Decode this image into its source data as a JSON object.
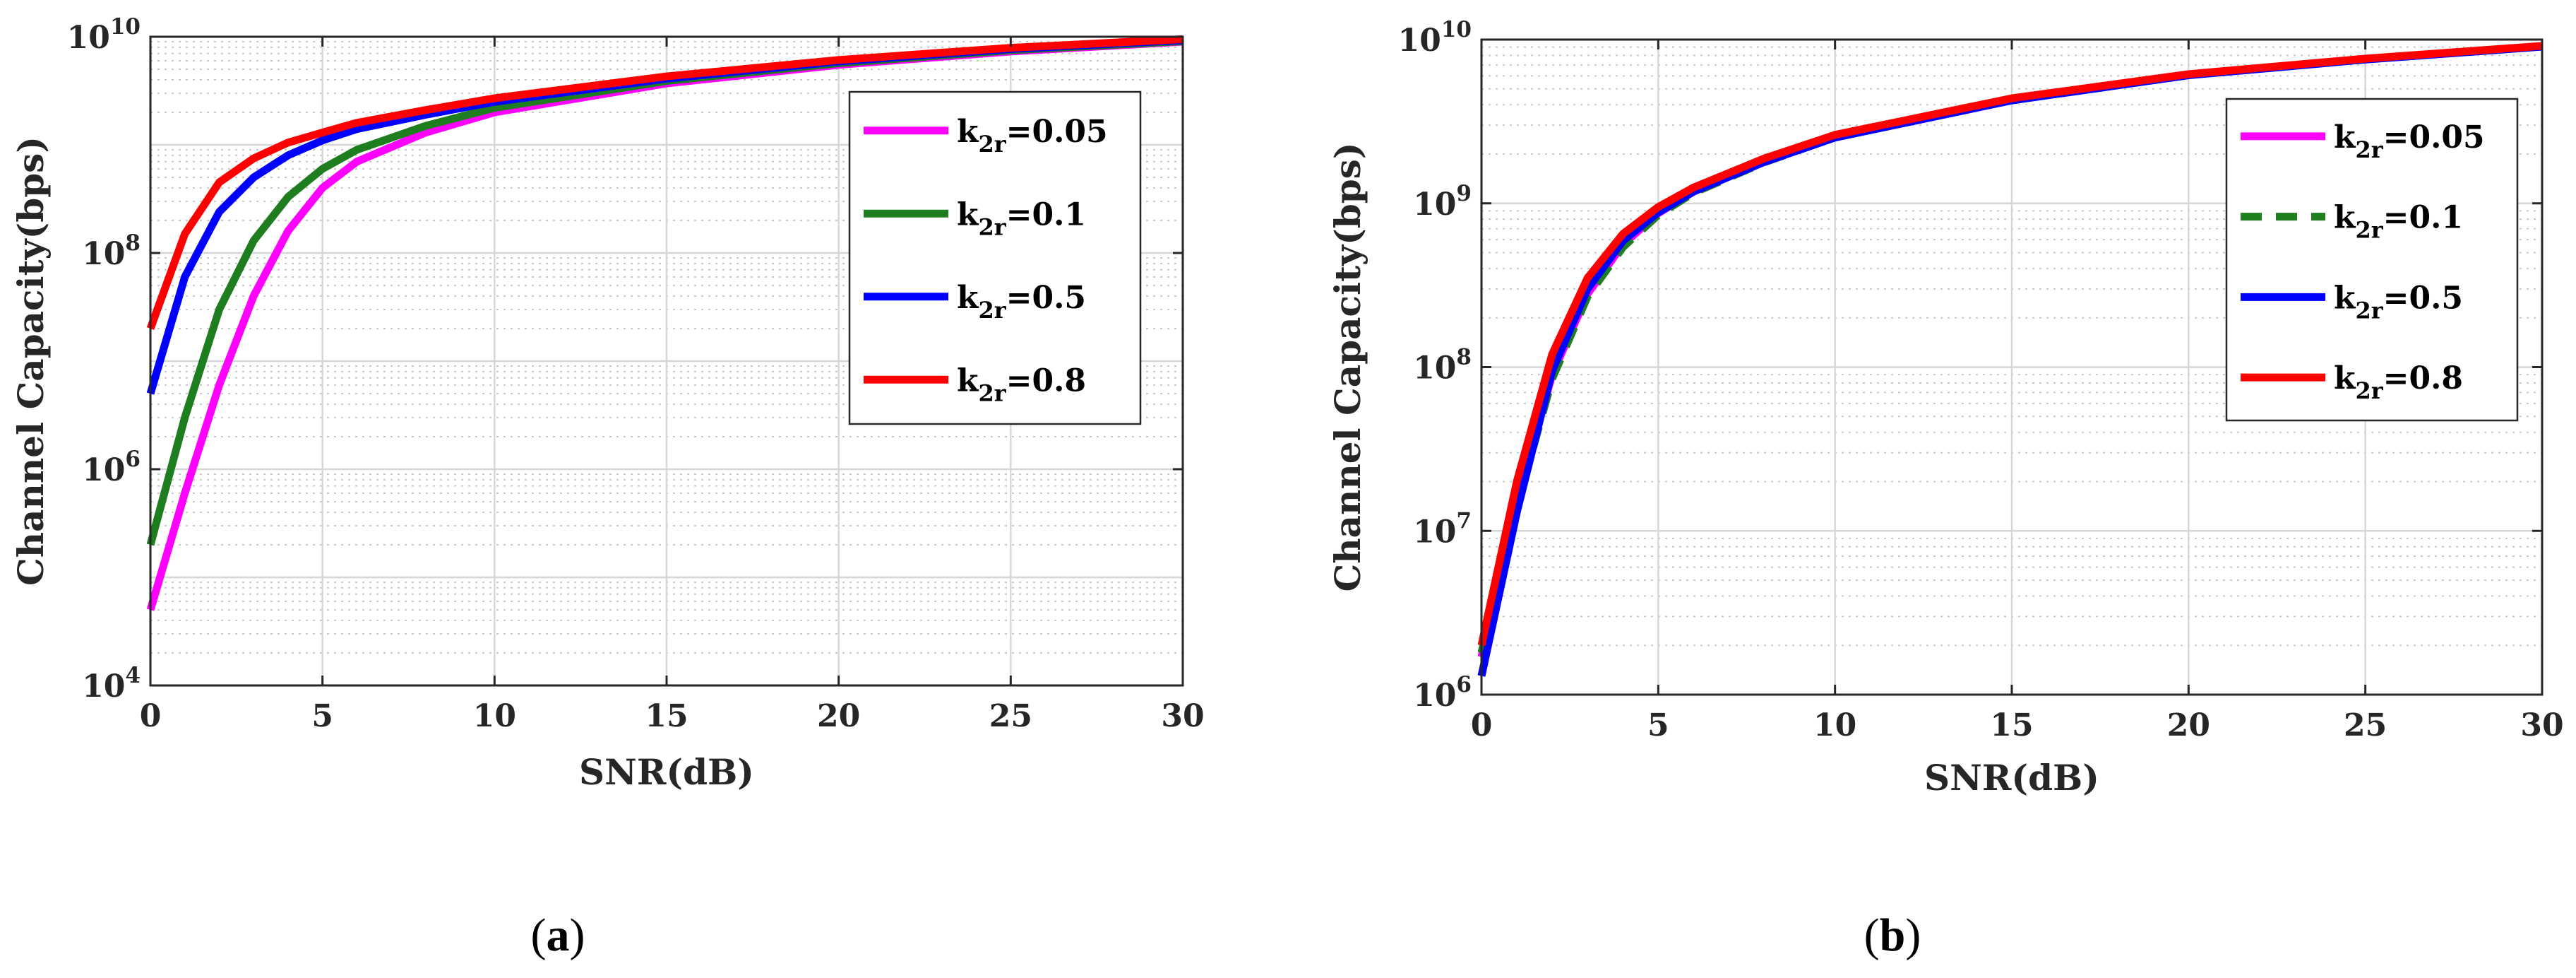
{
  "chart_data": [
    {
      "type": "line",
      "panel_label": "a",
      "title": "",
      "xlabel": "SNR(dB)",
      "ylabel": "Channel Capacity(bps)",
      "xlim": [
        0,
        30
      ],
      "ylim": [
        10000,
        10000000000
      ],
      "yscale": "log",
      "grid": true,
      "minor_grid": true,
      "legend_position": "top-right",
      "xticks": [
        "0",
        "5",
        "10",
        "15",
        "20",
        "25",
        "30"
      ],
      "yticks": [
        {
          "base": "10",
          "exp": "4"
        },
        {
          "base": "10",
          "exp": "6"
        },
        {
          "base": "10",
          "exp": "8"
        },
        {
          "base": "10",
          "exp": "10"
        }
      ],
      "x": [
        0,
        1,
        2,
        3,
        4,
        5,
        6,
        8,
        10,
        15,
        20,
        25,
        30
      ],
      "series": [
        {
          "name": "k_2r=0.05",
          "legend_main": "k",
          "legend_sub": "2r",
          "legend_value": "=0.05",
          "color": "#ff00ff",
          "dash": "solid",
          "values": [
            50000,
            600000,
            6000000,
            40000000,
            160000000,
            400000000,
            700000000,
            1300000000,
            2000000000,
            3700000000,
            5500000000,
            7300000000,
            9000000000
          ]
        },
        {
          "name": "k_2r=0.1",
          "legend_main": "k",
          "legend_sub": "2r",
          "legend_value": "=0.1",
          "color": "#1e7d1e",
          "dash": "solid",
          "values": [
            200000,
            3000000,
            30000000,
            130000000,
            330000000,
            600000000,
            900000000,
            1500000000,
            2200000000,
            3900000000,
            5700000000,
            7500000000,
            9100000000
          ]
        },
        {
          "name": "k_2r=0.5",
          "legend_main": "k",
          "legend_sub": "2r",
          "legend_value": "=0.5",
          "color": "#0000ff",
          "dash": "solid",
          "values": [
            5000000,
            60000000,
            240000000,
            500000000,
            800000000,
            1100000000,
            1400000000,
            1900000000,
            2500000000,
            4100000000,
            5900000000,
            7700000000,
            9300000000
          ]
        },
        {
          "name": "k_2r=0.8",
          "legend_main": "k",
          "legend_sub": "2r",
          "legend_value": "=0.8",
          "color": "#ff0000",
          "dash": "solid",
          "values": [
            20000000,
            150000000,
            450000000,
            750000000,
            1050000000,
            1300000000,
            1600000000,
            2100000000,
            2700000000,
            4300000000,
            6100000000,
            7900000000,
            9500000000
          ]
        }
      ]
    },
    {
      "type": "line",
      "panel_label": "b",
      "title": "",
      "xlabel": "SNR(dB)",
      "ylabel": "Channel Capacity(bps)",
      "xlim": [
        0,
        30
      ],
      "ylim": [
        1000000,
        10000000000
      ],
      "yscale": "log",
      "grid": true,
      "minor_grid": true,
      "legend_position": "top-right",
      "xticks": [
        "0",
        "5",
        "10",
        "15",
        "20",
        "25",
        "30"
      ],
      "yticks": [
        {
          "base": "10",
          "exp": "6"
        },
        {
          "base": "10",
          "exp": "7"
        },
        {
          "base": "10",
          "exp": "8"
        },
        {
          "base": "10",
          "exp": "9"
        },
        {
          "base": "10",
          "exp": "10"
        }
      ],
      "x": [
        0,
        1,
        2,
        3,
        4,
        5,
        6,
        8,
        10,
        15,
        20,
        25,
        30
      ],
      "series": [
        {
          "name": "k_2r=0.05",
          "legend_main": "k",
          "legend_sub": "2r",
          "legend_value": "=0.05",
          "color": "#ff00ff",
          "dash": "solid",
          "values": [
            1700000,
            15000000,
            90000000,
            280000000,
            560000000,
            870000000,
            1180000000,
            1800000000,
            2550000000,
            4300000000,
            6100000000,
            7600000000,
            9100000000
          ]
        },
        {
          "name": "k_2r=0.1",
          "legend_main": "k",
          "legend_sub": "2r",
          "legend_value": "=0.1",
          "color": "#1e7d1e",
          "dash": "dashed",
          "values": [
            1800000,
            14000000,
            85000000,
            270000000,
            540000000,
            850000000,
            1160000000,
            1780000000,
            2530000000,
            4280000000,
            6080000000,
            7580000000,
            9080000000
          ]
        },
        {
          "name": "k_2r=0.5",
          "legend_main": "k",
          "legend_sub": "2r",
          "legend_value": "=0.5",
          "color": "#0000ff",
          "dash": "solid",
          "values": [
            1300000,
            13000000,
            95000000,
            300000000,
            590000000,
            880000000,
            1180000000,
            1790000000,
            2520000000,
            4250000000,
            6050000000,
            7550000000,
            9050000000
          ]
        },
        {
          "name": "k_2r=0.8",
          "legend_main": "k",
          "legend_sub": "2r",
          "legend_value": "=0.8",
          "color": "#ff0000",
          "dash": "solid",
          "values": [
            2000000,
            20000000,
            120000000,
            350000000,
            650000000,
            950000000,
            1250000000,
            1880000000,
            2620000000,
            4380000000,
            6150000000,
            7650000000,
            9150000000
          ]
        }
      ]
    }
  ]
}
